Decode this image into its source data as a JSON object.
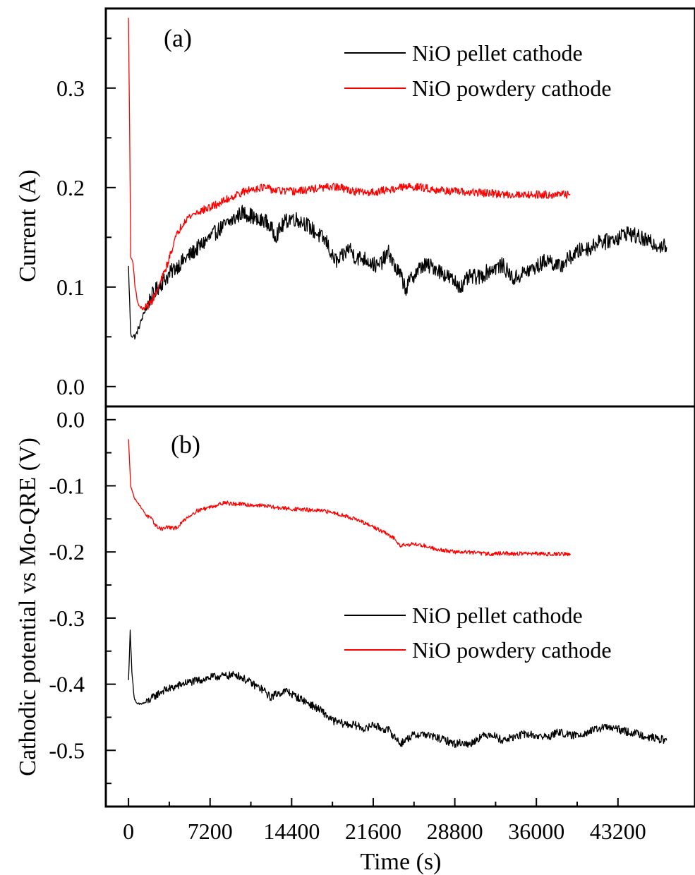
{
  "chart_data": [
    {
      "type": "line",
      "panel_label": "(a)",
      "ylabel": "Current (A)",
      "xlabel": "",
      "xlim": [
        -2000,
        50000
      ],
      "ylim": [
        -0.02,
        0.38
      ],
      "yticks": [
        0.0,
        0.1,
        0.2,
        0.3
      ],
      "yticklabels": [
        "0.0",
        "0.1",
        "0.2",
        "0.3"
      ],
      "legend_position": "top-right",
      "series": [
        {
          "name": "NiO pellet cathode",
          "color": "#000000",
          "noise": 0.008,
          "x": [
            0,
            200,
            600,
            1000,
            1500,
            2000,
            2500,
            3000,
            4000,
            5000,
            6000,
            7200,
            8000,
            9000,
            9500,
            10000,
            10800,
            11500,
            12000,
            12500,
            13000,
            13800,
            14400,
            15500,
            16500,
            17500,
            18000,
            18500,
            19500,
            20000,
            21000,
            22000,
            23000,
            23500,
            24000,
            24500,
            25000,
            26000,
            27000,
            28000,
            28800,
            29500,
            30000,
            31000,
            32000,
            33000,
            34000,
            35000,
            36000,
            37000,
            38000,
            39000,
            40000,
            41000,
            41500,
            42000,
            43200,
            44000,
            45000,
            46000,
            47500
          ],
          "y": [
            0.12,
            0.052,
            0.05,
            0.062,
            0.078,
            0.09,
            0.098,
            0.105,
            0.118,
            0.128,
            0.138,
            0.15,
            0.158,
            0.166,
            0.17,
            0.175,
            0.172,
            0.165,
            0.168,
            0.16,
            0.152,
            0.165,
            0.17,
            0.165,
            0.155,
            0.145,
            0.13,
            0.125,
            0.14,
            0.13,
            0.128,
            0.12,
            0.135,
            0.12,
            0.112,
            0.098,
            0.11,
            0.122,
            0.12,
            0.112,
            0.105,
            0.1,
            0.11,
            0.11,
            0.118,
            0.122,
            0.108,
            0.115,
            0.12,
            0.128,
            0.12,
            0.13,
            0.138,
            0.14,
            0.148,
            0.145,
            0.15,
            0.155,
            0.15,
            0.145,
            0.14
          ]
        },
        {
          "name": "NiO powdery cathode",
          "color": "#ff0000",
          "noise": 0.004,
          "x": [
            0,
            100,
            200,
            400,
            600,
            800,
            1000,
            1300,
            1600,
            2000,
            2500,
            3000,
            3500,
            4000,
            4500,
            5000,
            6000,
            7200,
            8000,
            9000,
            10000,
            10800,
            11500,
            12000,
            13000,
            14400,
            15500,
            16500,
            17500,
            18000,
            19000,
            20000,
            21000,
            22000,
            22500,
            23000,
            24000,
            25000,
            26000,
            27000,
            28000,
            28800,
            30000,
            31000,
            32000,
            33000,
            34000,
            35000,
            36000,
            37000,
            38000,
            39000
          ],
          "y": [
            0.37,
            0.26,
            0.13,
            0.125,
            0.098,
            0.085,
            0.08,
            0.078,
            0.08,
            0.085,
            0.095,
            0.11,
            0.125,
            0.145,
            0.158,
            0.168,
            0.175,
            0.18,
            0.184,
            0.19,
            0.195,
            0.198,
            0.2,
            0.2,
            0.197,
            0.196,
            0.197,
            0.199,
            0.2,
            0.201,
            0.199,
            0.196,
            0.195,
            0.196,
            0.197,
            0.198,
            0.2,
            0.201,
            0.2,
            0.198,
            0.197,
            0.196,
            0.195,
            0.195,
            0.194,
            0.193,
            0.193,
            0.193,
            0.193,
            0.193,
            0.193,
            0.193
          ]
        }
      ]
    },
    {
      "type": "line",
      "panel_label": "(b)",
      "ylabel": "Cathodic potential vs Mo-QRE (V)",
      "xlabel": "Time (s)",
      "xlim": [
        -2000,
        50000
      ],
      "ylim": [
        -0.585,
        0.02
      ],
      "xticks": [
        0,
        7200,
        14400,
        21600,
        28800,
        36000,
        43200
      ],
      "xticklabels": [
        "0",
        "7200",
        "14400",
        "21600",
        "28800",
        "36000",
        "43200"
      ],
      "yticks": [
        0.0,
        -0.1,
        -0.2,
        -0.3,
        -0.4,
        -0.5
      ],
      "yticklabels": [
        "0.0",
        "-0.1",
        "-0.2",
        "-0.3",
        "-0.4",
        "-0.5"
      ],
      "legend_position": "right",
      "series": [
        {
          "name": "NiO pellet cathode",
          "color": "#000000",
          "noise": 0.006,
          "x": [
            0,
            150,
            300,
            500,
            700,
            1000,
            1500,
            2000,
            3000,
            4000,
            5000,
            6000,
            7200,
            8000,
            9000,
            9500,
            10000,
            11000,
            12000,
            12500,
            13000,
            14000,
            14400,
            15500,
            16000,
            17000,
            18000,
            19000,
            20000,
            21000,
            21600,
            22000,
            23000,
            23500,
            24000,
            25000,
            26000,
            27000,
            28000,
            28800,
            29500,
            30000,
            31000,
            32000,
            33000,
            34000,
            35000,
            36000,
            37000,
            38000,
            39000,
            40000,
            41000,
            42000,
            43200,
            44000,
            45000,
            46000,
            47500
          ],
          "y": [
            -0.395,
            -0.32,
            -0.38,
            -0.42,
            -0.43,
            -0.43,
            -0.428,
            -0.422,
            -0.41,
            -0.405,
            -0.398,
            -0.395,
            -0.39,
            -0.388,
            -0.387,
            -0.385,
            -0.39,
            -0.4,
            -0.41,
            -0.42,
            -0.415,
            -0.41,
            -0.415,
            -0.425,
            -0.43,
            -0.44,
            -0.455,
            -0.46,
            -0.462,
            -0.468,
            -0.46,
            -0.465,
            -0.47,
            -0.48,
            -0.49,
            -0.478,
            -0.475,
            -0.48,
            -0.485,
            -0.49,
            -0.488,
            -0.492,
            -0.48,
            -0.475,
            -0.485,
            -0.48,
            -0.475,
            -0.478,
            -0.48,
            -0.472,
            -0.478,
            -0.475,
            -0.47,
            -0.465,
            -0.468,
            -0.472,
            -0.475,
            -0.48,
            -0.485
          ]
        },
        {
          "name": "NiO powdery cathode",
          "color": "#ff0000",
          "noise": 0.003,
          "x": [
            0,
            200,
            500,
            800,
            1200,
            1600,
            2000,
            2500,
            3000,
            3500,
            4000,
            4500,
            5000,
            6000,
            7200,
            8000,
            8500,
            9000,
            10000,
            10800,
            12000,
            13000,
            14400,
            15500,
            16000,
            17000,
            18000,
            19000,
            20000,
            21000,
            21600,
            22500,
            23500,
            24000,
            25000,
            26000,
            27000,
            28000,
            28800,
            30000,
            31000,
            32000,
            33000,
            34000,
            35000,
            36000,
            37000,
            38000,
            39000
          ],
          "y": [
            -0.03,
            -0.1,
            -0.118,
            -0.125,
            -0.135,
            -0.145,
            -0.15,
            -0.162,
            -0.165,
            -0.162,
            -0.165,
            -0.16,
            -0.15,
            -0.138,
            -0.132,
            -0.128,
            -0.125,
            -0.127,
            -0.128,
            -0.129,
            -0.13,
            -0.133,
            -0.135,
            -0.136,
            -0.137,
            -0.138,
            -0.14,
            -0.145,
            -0.15,
            -0.158,
            -0.162,
            -0.17,
            -0.18,
            -0.19,
            -0.188,
            -0.19,
            -0.195,
            -0.198,
            -0.2,
            -0.2,
            -0.202,
            -0.203,
            -0.202,
            -0.203,
            -0.202,
            -0.203,
            -0.203,
            -0.203,
            -0.203
          ]
        }
      ]
    }
  ]
}
